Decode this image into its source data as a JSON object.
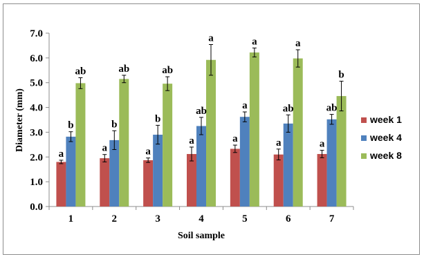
{
  "chart_data": {
    "type": "bar",
    "title": "",
    "xlabel": "Soil sample",
    "ylabel": "Diameter (mm)",
    "ylim": [
      0,
      7
    ],
    "yticks": [
      "0.0",
      "1.0",
      "2.0",
      "3.0",
      "4.0",
      "5.0",
      "6.0",
      "7.0"
    ],
    "categories": [
      "1",
      "2",
      "3",
      "4",
      "5",
      "6",
      "7"
    ],
    "grid": false,
    "legend_position": "right",
    "series": [
      {
        "name": "week 1",
        "color": "#c0504d",
        "values": [
          1.8,
          1.95,
          1.87,
          2.12,
          2.33,
          2.1,
          2.12
        ],
        "errors": [
          0.07,
          0.15,
          0.09,
          0.28,
          0.15,
          0.22,
          0.15
        ],
        "labels": [
          "a",
          "a",
          "a",
          "a",
          "a",
          "a",
          "a"
        ]
      },
      {
        "name": "week 4",
        "color": "#4f81bd",
        "values": [
          2.82,
          2.68,
          2.9,
          3.25,
          3.62,
          3.35,
          3.52
        ],
        "errors": [
          0.2,
          0.38,
          0.38,
          0.35,
          0.2,
          0.35,
          0.2
        ],
        "labels": [
          "b",
          "b",
          "b",
          "ab",
          "a",
          "ab",
          "ab"
        ]
      },
      {
        "name": "week 8",
        "color": "#9bbb59",
        "values": [
          4.98,
          5.15,
          4.96,
          5.92,
          6.22,
          5.98,
          4.46
        ],
        "errors": [
          0.22,
          0.15,
          0.28,
          0.62,
          0.18,
          0.35,
          0.6
        ],
        "labels": [
          "ab",
          "ab",
          "ab",
          "a",
          "a",
          "a",
          "b"
        ]
      }
    ]
  }
}
